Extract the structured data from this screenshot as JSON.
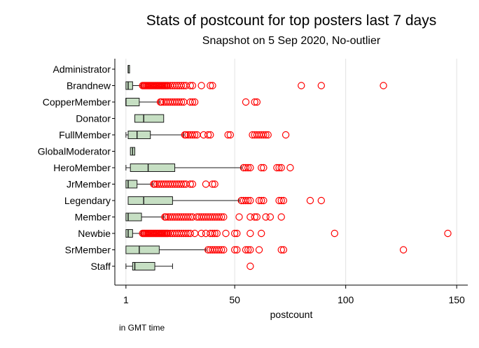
{
  "chart_data": {
    "type": "boxplot",
    "title": "Stats of postcount for top posters last 7 days",
    "subtitle": "Snapshot on 5 Sep 2020, No-outlier",
    "xlabel": "postcount",
    "note": "in GMT time",
    "xlim": [
      -4,
      155
    ],
    "xticks": [
      1,
      50,
      100,
      150
    ],
    "grid": true,
    "colors": {
      "box_fill": "#c6dfc3",
      "box_stroke": "#1a1a1a",
      "outlier": "#ff0000",
      "grid": "#e2e2e2"
    },
    "categories": [
      "Administrator",
      "Brandnew",
      "CopperMember",
      "Donator",
      "FullMember",
      "GlobalModerator",
      "HeroMember",
      "JrMember",
      "Legendary",
      "Member",
      "Newbie",
      "SrMember",
      "Staff"
    ],
    "series": [
      {
        "category": "Administrator",
        "whisker_low": 2,
        "q1": 2,
        "median": 2,
        "q3": 2,
        "whisker_high": 2,
        "outliers": []
      },
      {
        "category": "Brandnew",
        "whisker_low": 1,
        "q1": 1,
        "median": 2,
        "q3": 4,
        "whisker_high": 8,
        "outliers": [
          8.5,
          9,
          9.5,
          10,
          10.5,
          11,
          11.5,
          12,
          12.5,
          13,
          13.5,
          14,
          14.5,
          15,
          15.5,
          16,
          16.5,
          17,
          17.5,
          18,
          18.5,
          19,
          19.5,
          20,
          21,
          22,
          23,
          24,
          25,
          26,
          27,
          28,
          30,
          31,
          35,
          39,
          40,
          80,
          89,
          117
        ]
      },
      {
        "category": "CopperMember",
        "whisker_low": 1,
        "q1": 1,
        "median": 1,
        "q3": 7,
        "whisker_high": 16,
        "outliers": [
          16.5,
          17,
          18,
          19,
          20,
          21,
          22,
          23,
          24,
          25,
          26,
          27,
          30,
          31,
          32,
          55,
          59,
          60
        ]
      },
      {
        "category": "Donator",
        "whisker_low": 5,
        "q1": 5,
        "median": 9,
        "q3": 18,
        "whisker_high": 18,
        "outliers": []
      },
      {
        "category": "FullMember",
        "whisker_low": 1,
        "q1": 2,
        "median": 6,
        "q3": 12,
        "whisker_high": 27,
        "outliers": [
          27.5,
          28,
          29,
          30,
          31,
          32,
          33,
          36,
          38,
          39,
          47,
          48,
          58,
          59,
          60,
          61,
          62,
          63,
          64,
          65,
          73
        ]
      },
      {
        "category": "GlobalModerator",
        "whisker_low": 3,
        "q1": 3,
        "median": 4,
        "q3": 5,
        "whisker_high": 5,
        "outliers": []
      },
      {
        "category": "HeroMember",
        "whisker_low": 1,
        "q1": 3,
        "median": 11,
        "q3": 23,
        "whisker_high": 53,
        "outliers": [
          54,
          55,
          56,
          57,
          62,
          63,
          69,
          70,
          71,
          75
        ]
      },
      {
        "category": "JrMember",
        "whisker_low": 1,
        "q1": 1,
        "median": 2,
        "q3": 6,
        "whisker_high": 13,
        "outliers": [
          13.5,
          14,
          15,
          16,
          17,
          18,
          19,
          20,
          21,
          22,
          23,
          24,
          25,
          26,
          27,
          28,
          30,
          31,
          37,
          40,
          41
        ]
      },
      {
        "category": "Legendary",
        "whisker_low": 2,
        "q1": 2,
        "median": 9,
        "q3": 22,
        "whisker_high": 52,
        "outliers": [
          53,
          54,
          55,
          56,
          57,
          61,
          62,
          63,
          70,
          71,
          72,
          84,
          89
        ]
      },
      {
        "category": "Member",
        "whisker_low": 1,
        "q1": 1,
        "median": 2,
        "q3": 8,
        "whisker_high": 18,
        "outliers": [
          18.5,
          19,
          20,
          21,
          22,
          23,
          24,
          25,
          26,
          27,
          28,
          29,
          30,
          31,
          33,
          34,
          35,
          36,
          37,
          38,
          39,
          40,
          41,
          42,
          43,
          44,
          45,
          52,
          57,
          59,
          60,
          64,
          66,
          71
        ]
      },
      {
        "category": "Newbie",
        "whisker_low": 1,
        "q1": 1,
        "median": 2,
        "q3": 4,
        "whisker_high": 8,
        "outliers": [
          8.5,
          9,
          9.5,
          10,
          10.5,
          11,
          11.5,
          12,
          12.5,
          13,
          13.5,
          14,
          14.5,
          15,
          15.5,
          16,
          16.5,
          17,
          17.5,
          18,
          18.5,
          19,
          19.5,
          20,
          21,
          22,
          23,
          24,
          25,
          26,
          27,
          28,
          29,
          30,
          32,
          35,
          37,
          39,
          40,
          41,
          42,
          46,
          50,
          51,
          57,
          62,
          95,
          146
        ]
      },
      {
        "category": "SrMember",
        "whisker_low": 1,
        "q1": 1,
        "median": 7,
        "q3": 16,
        "whisker_high": 37,
        "outliers": [
          38,
          39,
          40,
          41,
          42,
          43,
          44,
          45,
          50,
          51,
          55,
          56,
          57,
          61,
          71,
          72,
          126
        ]
      },
      {
        "category": "Staff",
        "whisker_low": 1,
        "q1": 4,
        "median": 5,
        "q3": 14,
        "whisker_high": 22,
        "outliers": [
          57
        ]
      }
    ]
  }
}
